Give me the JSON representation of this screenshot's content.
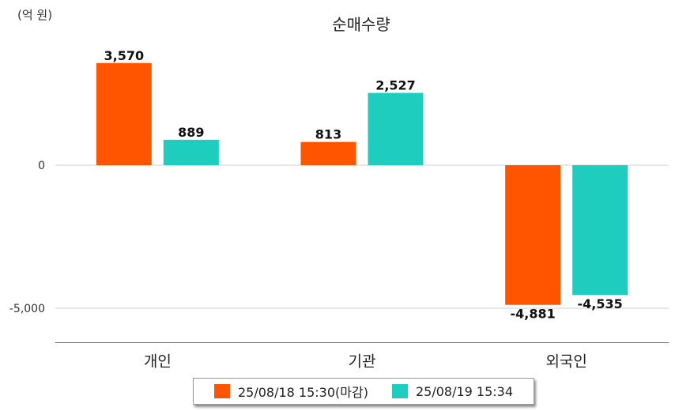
{
  "unit_label": "(억 원)",
  "chart_data": {
    "type": "bar",
    "title": "순매수량",
    "categories": [
      "개인",
      "기관",
      "외국인"
    ],
    "series": [
      {
        "name": "25/08/18 15:30(마감)",
        "color": "#ff5400",
        "values": [
          3570,
          813,
          -4881
        ]
      },
      {
        "name": "25/08/19 15:34",
        "color": "#1ecdbd",
        "values": [
          889,
          2527,
          -4535
        ]
      }
    ],
    "data_labels": [
      [
        "3,570",
        "813",
        "-4,881"
      ],
      [
        "889",
        "2,527",
        "-4,535"
      ]
    ],
    "yticks": [
      0,
      -5000
    ],
    "ytick_labels": [
      "0",
      "-5,000"
    ],
    "ylim": [
      -6200,
      4350
    ],
    "xlabel": "",
    "ylabel": "",
    "grid": "horizontal",
    "legend_position": "bottom"
  }
}
